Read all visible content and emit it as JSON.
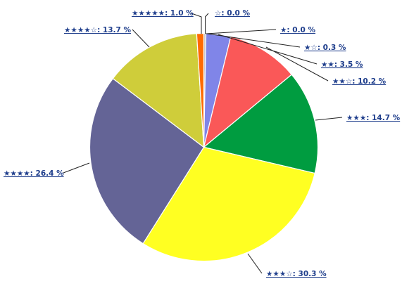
{
  "chart_data": {
    "type": "pie",
    "start_angle_deg": 0,
    "direction": "clockwise",
    "slices": [
      {
        "label": "☆: 0.0 %",
        "value": 0.0,
        "color": "#888888"
      },
      {
        "label": "★: 0.0 %",
        "value": 0.0,
        "color": "#bbbbbb"
      },
      {
        "label": "★☆: 0.3 %",
        "value": 0.3,
        "color": "#c0c0c0"
      },
      {
        "label": "★★: 3.5 %",
        "value": 3.5,
        "color": "#8085e8"
      },
      {
        "label": "★★☆: 10.2 %",
        "value": 10.2,
        "color": "#fa5858"
      },
      {
        "label": "★★★: 14.7 %",
        "value": 14.7,
        "color": "#009c40"
      },
      {
        "label": "★★★☆: 30.3 %",
        "value": 30.3,
        "color": "#ffff22"
      },
      {
        "label": "★★★★: 26.4 %",
        "value": 26.4,
        "color": "#646496"
      },
      {
        "label": "★★★★☆: 13.7 %",
        "value": 13.7,
        "color": "#cfcd3a"
      },
      {
        "label": "★★★★★: 1.0 %",
        "value": 1.0,
        "color": "#ff6a00"
      }
    ],
    "legend": "none"
  }
}
